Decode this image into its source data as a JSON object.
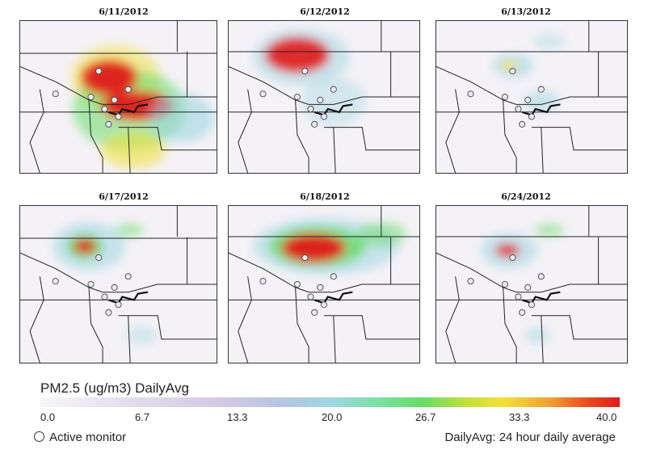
{
  "panels": [
    {
      "date": "6/11/2012"
    },
    {
      "date": "6/12/2012"
    },
    {
      "date": "6/13/2012"
    },
    {
      "date": "6/17/2012"
    },
    {
      "date": "6/18/2012"
    },
    {
      "date": "6/24/2012"
    }
  ],
  "legend": {
    "title": "PM2.5 (ug/m3) DailyAvg",
    "ticks": [
      "0.0",
      "6.7",
      "13.3",
      "20.0",
      "26.7",
      "33.3",
      "40.0"
    ],
    "monitor_label": "Active monitor",
    "daily_note": "DailyAvg: 24 hour daily average"
  },
  "colors": {
    "low": "#f4f2f6",
    "mid": "#9fd6e2",
    "green": "#66dc66",
    "yellow": "#f2e03a",
    "high": "#e01a1a"
  }
}
